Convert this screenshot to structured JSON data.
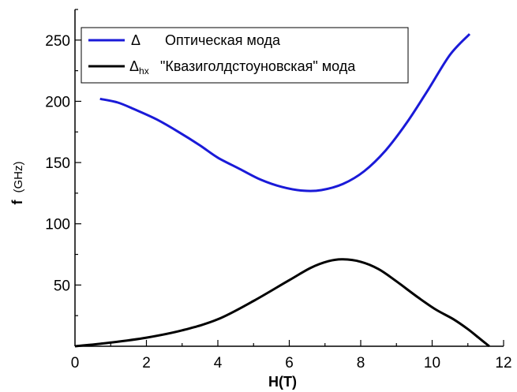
{
  "chart_data": {
    "type": "line",
    "xlabel": "H(T)",
    "ylabel": {
      "main": "f",
      "unit": "(GHz)"
    },
    "xlim": [
      0,
      12
    ],
    "ylim": [
      0,
      275
    ],
    "xticks": [
      0,
      2,
      4,
      6,
      8,
      10,
      12
    ],
    "yticks": [
      50,
      100,
      150,
      200,
      250
    ],
    "grid": false,
    "legend_position": "top",
    "series": [
      {
        "name": "Оптическая мода",
        "legend_symbol": "Δ",
        "color": "#1a1ad8",
        "x": [
          0.7,
          1.2,
          1.7,
          2.3,
          2.9,
          3.5,
          4.0,
          4.6,
          5.2,
          5.8,
          6.4,
          6.9,
          7.5,
          8.1,
          8.7,
          9.3,
          9.9,
          10.5,
          11.05
        ],
        "y": [
          202,
          199,
          193,
          185,
          175,
          164,
          154,
          145,
          136,
          130,
          127,
          127.5,
          132.5,
          143,
          160,
          183,
          210,
          238,
          255
        ]
      },
      {
        "name": "\"Квазиголдстоуновская\" мода",
        "legend_symbol": "Δ",
        "legend_symbol_sub": "hx",
        "color": "#000000",
        "x": [
          0,
          1,
          2,
          3,
          4,
          5,
          6,
          6.6,
          7.1,
          7.5,
          8.0,
          8.5,
          9.0,
          9.6,
          10.1,
          10.6,
          11.0,
          11.3,
          11.6
        ],
        "y": [
          0,
          3,
          7,
          13,
          22,
          37,
          54,
          64,
          69.5,
          71,
          69,
          63,
          53,
          40,
          30,
          22,
          14,
          7,
          0
        ]
      }
    ]
  }
}
